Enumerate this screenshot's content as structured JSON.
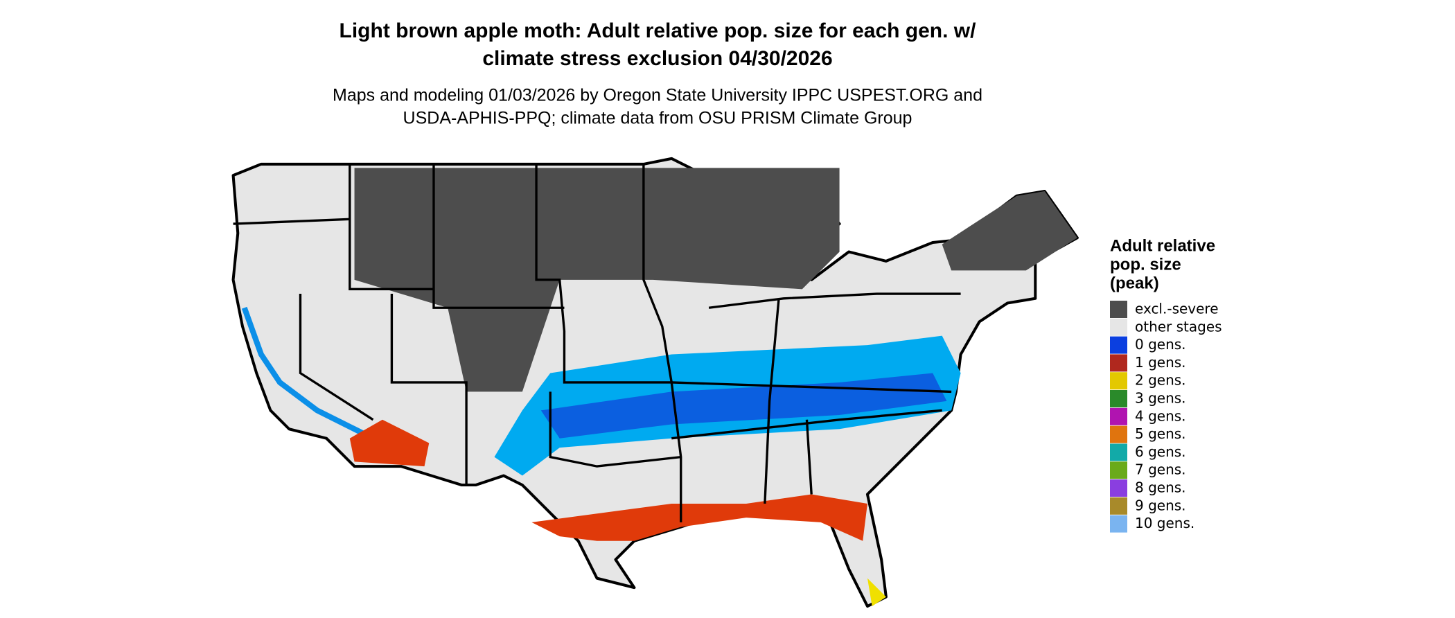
{
  "title": [
    "Light brown apple moth: Adult relative pop. size for each gen. w/",
    "climate stress exclusion 04/30/2026"
  ],
  "subtitle": [
    "Maps and modeling 01/03/2026 by Oregon State University IPPC USPEST.ORG and",
    "USDA-APHIS-PPQ; climate data from OSU PRISM Climate Group"
  ],
  "legend": {
    "title": [
      "Adult relative",
      "pop. size",
      "(peak)"
    ],
    "items": [
      {
        "label": "excl.-severe",
        "color": "#4d4d4d"
      },
      {
        "label": "other stages",
        "color": "#e6e6e6"
      },
      {
        "label": "0 gens.",
        "color": "#0b3fe0"
      },
      {
        "label": "1 gens.",
        "color": "#b0281e"
      },
      {
        "label": "2 gens.",
        "color": "#e3c800"
      },
      {
        "label": "3 gens.",
        "color": "#2a8a2a"
      },
      {
        "label": "4 gens.",
        "color": "#b014b0"
      },
      {
        "label": "5 gens.",
        "color": "#e0740e"
      },
      {
        "label": "6 gens.",
        "color": "#12aaa8"
      },
      {
        "label": "7 gens.",
        "color": "#6aaa1a"
      },
      {
        "label": "8 gens.",
        "color": "#8a3ee0"
      },
      {
        "label": "9 gens.",
        "color": "#a88a2a"
      },
      {
        "label": "10 gens.",
        "color": "#7ab4f0"
      }
    ]
  }
}
